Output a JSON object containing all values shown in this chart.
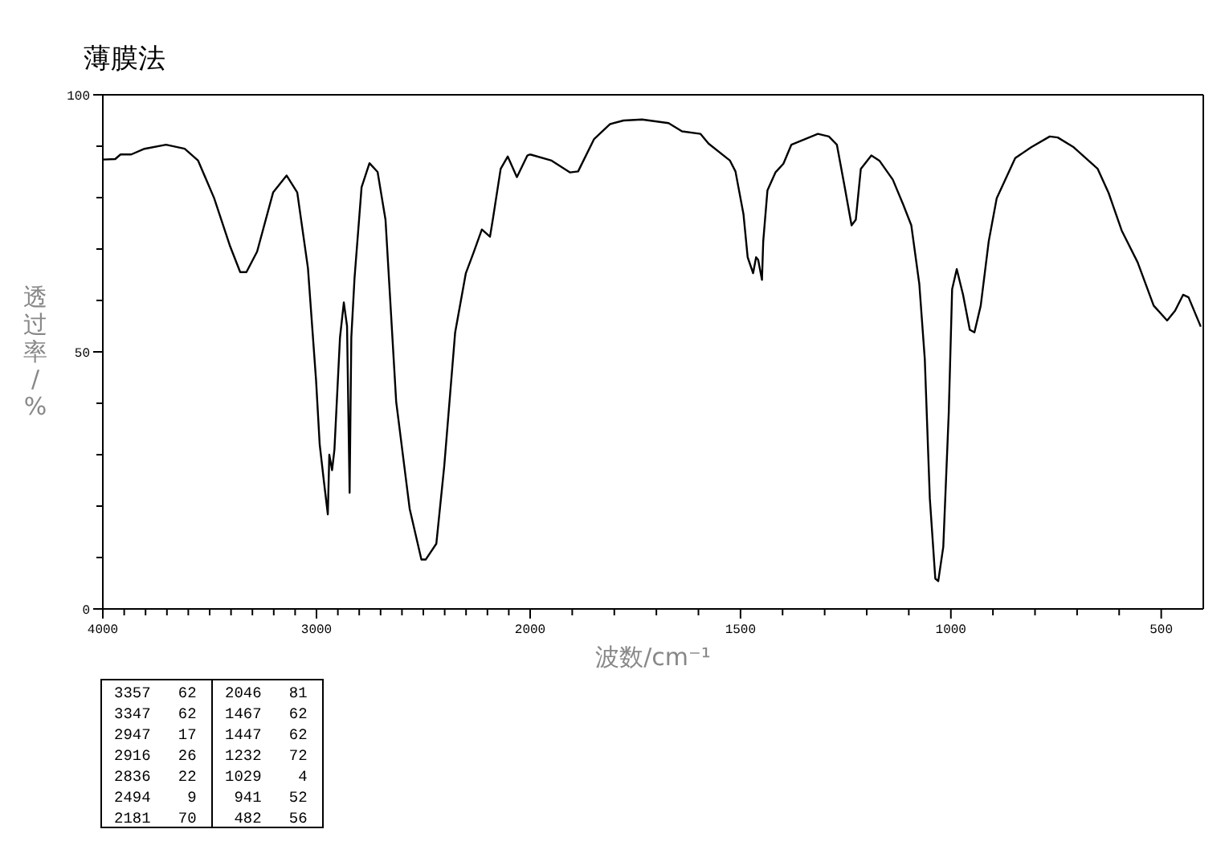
{
  "chart_data": [
    {
      "type": "line",
      "title": "薄膜法",
      "ylabel": "透过率/%",
      "xlim": [
        4000,
        2000
      ],
      "ylim": [
        0,
        100
      ],
      "xticks": [
        4000,
        {
          "value": 3900,
          "label": null
        },
        {
          "value": 3800,
          "label": null
        },
        {
          "value": 3700,
          "label": null
        },
        {
          "value": 3600,
          "label": null
        },
        {
          "value": 3500,
          "label": null
        },
        {
          "value": 3400,
          "label": null
        },
        {
          "value": 3300,
          "label": null
        },
        {
          "value": 3200,
          "label": null
        },
        {
          "value": 3100,
          "label": null
        },
        3000,
        {
          "value": 2900,
          "label": null
        },
        {
          "value": 2800,
          "label": null
        },
        {
          "value": 2700,
          "label": null
        },
        {
          "value": 2600,
          "label": null
        },
        {
          "value": 2500,
          "label": null
        },
        {
          "value": 2400,
          "label": null
        },
        {
          "value": 2300,
          "label": null
        },
        {
          "value": 2200,
          "label": null
        },
        {
          "value": 2100,
          "label": null
        }
      ],
      "yticks": [
        0,
        {
          "value": 10,
          "label": null
        },
        {
          "value": 20,
          "label": null
        },
        {
          "value": 30,
          "label": null
        },
        {
          "value": 40,
          "label": null
        },
        50,
        {
          "value": 60,
          "label": null
        },
        {
          "value": 70,
          "label": null
        },
        {
          "value": 80,
          "label": null
        },
        {
          "value": 90,
          "label": null
        },
        100
      ],
      "series": [
        {
          "color": "#000000",
          "x": [
            4000,
            3942,
            3917,
            3867,
            3805,
            3704,
            3617,
            3554,
            3479,
            3404,
            3357,
            3328,
            3278,
            3203,
            3140,
            3090,
            3040,
            3002,
            2985,
            2965,
            2947,
            2940,
            2927,
            2916,
            2890,
            2872,
            2857,
            2845,
            2837,
            2822,
            2789,
            2752,
            2714,
            2677,
            2627,
            2564,
            2509,
            2489,
            2439,
            2402,
            2351,
            2301,
            2263,
            2226,
            2188,
            2175,
            2138,
            2105,
            2062,
            2013,
            2000
          ],
          "values": [
            87.4,
            87.5,
            88.4,
            88.4,
            89.5,
            90.3,
            89.5,
            87.2,
            79.9,
            70.5,
            65.5,
            65.5,
            69.5,
            81,
            84.3,
            81,
            66.3,
            44.5,
            32,
            24.7,
            18.4,
            30,
            27,
            31,
            52.8,
            59.6,
            55,
            22.6,
            52.8,
            64.3,
            82,
            86.7,
            85,
            75.7,
            40.3,
            19.5,
            9.6,
            9.6,
            12.7,
            27.8,
            53.8,
            65.3,
            69.5,
            73.8,
            72.4,
            75.7,
            85.6,
            88,
            84,
            88.2,
            88.4
          ]
        }
      ],
      "annotations": [
        "3357   62",
        "3347   62",
        "2947   17",
        "2916   26",
        "2836   22",
        "2494    9",
        "2181   70",
        "2046   81",
        "1467   62",
        "1447   62",
        "1232   72",
        "1029    4",
        " 941   52",
        " 482   56"
      ]
    },
    {
      "type": "line",
      "xlabel": "波数/cm⁻¹",
      "xlim": [
        2000,
        400
      ],
      "ylim": [
        0,
        100
      ],
      "tick_labels": "x",
      "xticks": [
        2000,
        {
          "value": 1900,
          "label": null
        },
        {
          "value": 1800,
          "label": null
        },
        {
          "value": 1700,
          "label": null
        },
        {
          "value": 1600,
          "label": null
        },
        1500,
        {
          "value": 1400,
          "label": null
        },
        {
          "value": 1300,
          "label": null
        },
        {
          "value": 1200,
          "label": null
        },
        {
          "value": 1100,
          "label": null
        },
        1000,
        {
          "value": 900,
          "label": null
        },
        {
          "value": 800,
          "label": null
        },
        {
          "value": 700,
          "label": null
        },
        {
          "value": 600,
          "label": null
        },
        500
      ],
      "series": [
        {
          "color": "#000000",
          "x": [
            2000,
            1949,
            1905,
            1886,
            1848,
            1810,
            1778,
            1734,
            1671,
            1639,
            1595,
            1576,
            1525,
            1512,
            1493,
            1483,
            1470,
            1463,
            1458,
            1449,
            1446,
            1436,
            1417,
            1398,
            1379,
            1316,
            1290,
            1271,
            1252,
            1236,
            1226,
            1214,
            1189,
            1170,
            1138,
            1113,
            1094,
            1075,
            1062,
            1050,
            1037,
            1030,
            1018,
            1005,
            997,
            986,
            971,
            955,
            944,
            929,
            910,
            891,
            847,
            809,
            765,
            746,
            708,
            651,
            625,
            594,
            556,
            518,
            486,
            467,
            448,
            435,
            406
          ],
          "values": [
            88.4,
            87.2,
            84.9,
            85.1,
            91.4,
            94.3,
            95,
            95.2,
            94.5,
            92.9,
            92.4,
            90.5,
            87.2,
            85.1,
            76.8,
            68.4,
            65.3,
            68.4,
            67.9,
            64,
            71.5,
            81.4,
            84.9,
            86.6,
            90.3,
            92.4,
            91.9,
            90.3,
            81.9,
            74.6,
            75.7,
            85.6,
            88.2,
            87.2,
            83.5,
            78.6,
            74.6,
            63.2,
            48.6,
            21.5,
            5.9,
            5.4,
            12.1,
            38.2,
            62.2,
            66.1,
            61.1,
            54.3,
            53.8,
            59,
            71.5,
            79.9,
            87.7,
            89.8,
            91.9,
            91.7,
            89.8,
            85.6,
            80.9,
            73.6,
            67.4,
            59,
            56.1,
            58,
            61.1,
            60.6,
            54.9
          ]
        }
      ]
    }
  ]
}
